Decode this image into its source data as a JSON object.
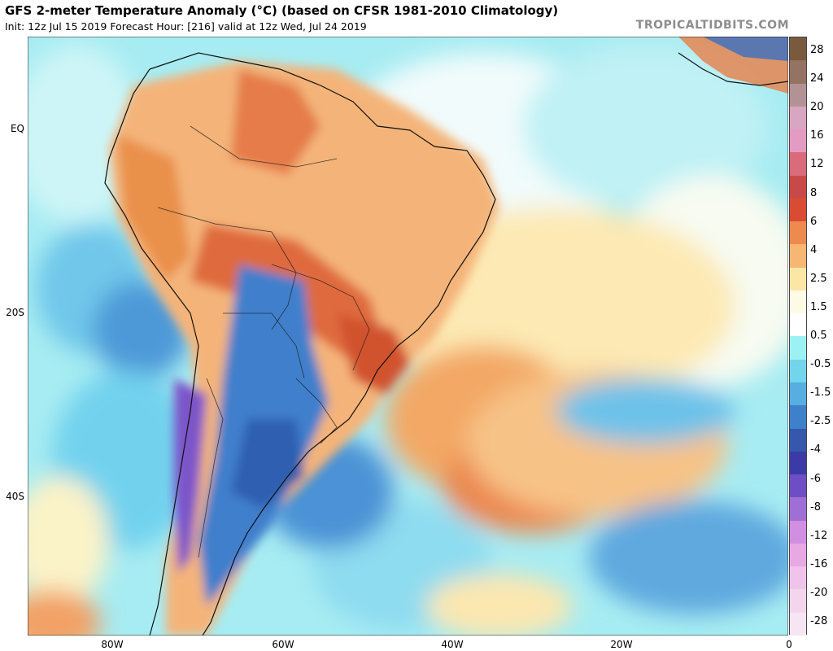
{
  "header": {
    "title": "GFS 2-meter Temperature Anomaly (°C) (based on CFSR 1981-2010 Climatology)",
    "subtitle": "Init: 12z Jul 15 2019   Forecast Hour: [216]   valid at 12z Wed, Jul 24 2019",
    "credit": "TROPICALTIDBITS.COM"
  },
  "map": {
    "latitude_labels": [
      "EQ",
      "20S",
      "40S"
    ],
    "longitude_labels": [
      "80W",
      "60W",
      "40W",
      "20W",
      "0"
    ]
  },
  "colorbar": {
    "labels": [
      "28",
      "24",
      "20",
      "16",
      "12",
      "8",
      "6",
      "4",
      "2.5",
      "1.5",
      "0.5",
      "-0.5",
      "-1.5",
      "-2.5",
      "-4",
      "-6",
      "-8",
      "-12",
      "-16",
      "-20",
      "-28"
    ],
    "colors": [
      "#7a5a3e",
      "#957362",
      "#b39296",
      "#d8a6c2",
      "#e39bc4",
      "#d96b7a",
      "#c84a48",
      "#d94c33",
      "#ee8a4e",
      "#f6b775",
      "#fbe6a6",
      "#fdfbe6",
      "#ffffff",
      "#9cf1f4",
      "#72d5ec",
      "#56aee1",
      "#3f80cb",
      "#3557ac",
      "#3a3ba6",
      "#6e4ec4",
      "#a06fd6",
      "#d08fe0",
      "#e8a8e4",
      "#f0c4ea",
      "#f3d6ee",
      "#f6e6f3"
    ]
  }
}
